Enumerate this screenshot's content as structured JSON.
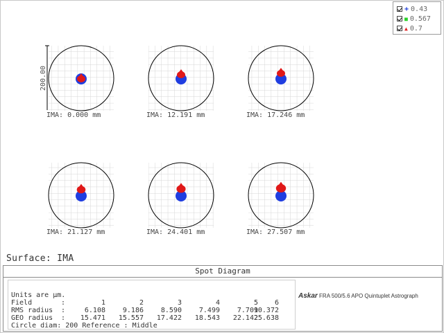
{
  "legend": [
    {
      "symbol": "+",
      "color": "#1a3ad8",
      "label": "0.43"
    },
    {
      "symbol": "■",
      "color": "#2ad12a",
      "label": "0.567"
    },
    {
      "symbol": "▲",
      "color": "#e02020",
      "label": "0.7"
    }
  ],
  "scale_label": "200.00",
  "spots": [
    {
      "label": "IMA: 0.000 mm",
      "red_offset": 0,
      "red_size": 1.0
    },
    {
      "label": "IMA: 12.191 mm",
      "red_offset": -6,
      "red_size": 1.0
    },
    {
      "label": "IMA: 17.246 mm",
      "red_offset": -8,
      "red_size": 1.0
    },
    {
      "label": "IMA: 21.127 mm",
      "red_offset": -9,
      "red_size": 1.05
    },
    {
      "label": "IMA: 24.401 mm",
      "red_offset": -10,
      "red_size": 1.1
    },
    {
      "label": "IMA: 27.507 mm",
      "red_offset": -11,
      "red_size": 1.2
    }
  ],
  "surface_label": "Surface: IMA",
  "panel_title": "Spot Diagram",
  "units_text": "Units are µm.",
  "table": {
    "rows": [
      {
        "label": "Field",
        "colon": ":",
        "values": [
          "1",
          "2",
          "3",
          "4",
          "5",
          "6"
        ]
      },
      {
        "label": "RMS radius",
        "colon": ":",
        "values": [
          "6.108",
          "9.186",
          "8.590",
          "7.499",
          "7.709",
          "10.372"
        ]
      },
      {
        "label": "GEO radius",
        "colon": ":",
        "values": [
          "15.471",
          "15.557",
          "17.422",
          "18.543",
          "22.142",
          "25.638"
        ]
      }
    ],
    "footer": "Circle diam: 200    Reference  : Middle"
  },
  "logo": {
    "brand": "Askar",
    "text": "FRA 500/5.6 APO Quintuplet Astrograph"
  }
}
